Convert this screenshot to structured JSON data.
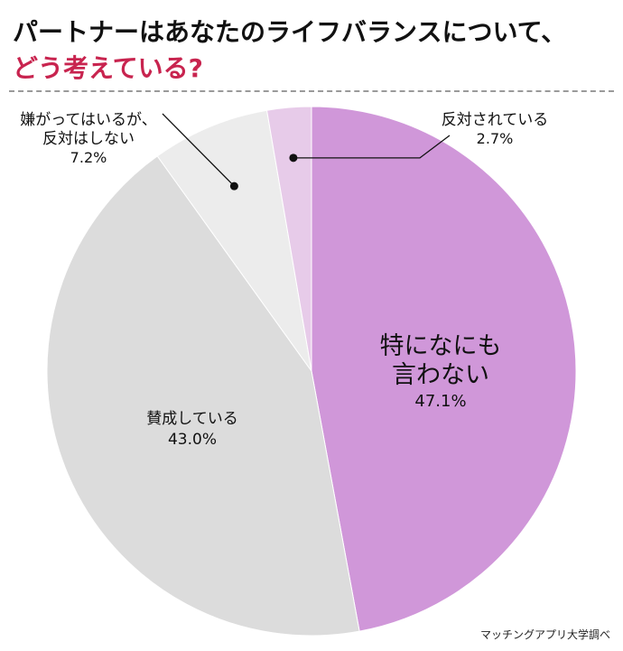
{
  "header": {
    "title_line1": "パートナーはあなたのライフバランスについて、",
    "title_line2": "どう考えている?"
  },
  "colors": {
    "title_accent": "#c8244f",
    "divider": "#9a9a9a"
  },
  "source": "マッチングアプリ大学調べ",
  "chart_data": {
    "type": "pie",
    "title": "パートナーはあなたのライフバランスについて、どう考えている?",
    "slices": [
      {
        "label_lines": [
          "特になにも",
          "言わない"
        ],
        "value": 47.1,
        "value_label": "47.1%",
        "color": "#d097d9"
      },
      {
        "label_lines": [
          "賛成している"
        ],
        "value": 43.0,
        "value_label": "43.0%",
        "color": "#dcdcdc"
      },
      {
        "label_lines": [
          "嫌がってはいるが、",
          "反対はしない"
        ],
        "value": 7.2,
        "value_label": "7.2%",
        "color": "#ececec"
      },
      {
        "label_lines": [
          "反対されている"
        ],
        "value": 2.7,
        "value_label": "2.7%",
        "color": "#e7cbe9"
      }
    ]
  }
}
